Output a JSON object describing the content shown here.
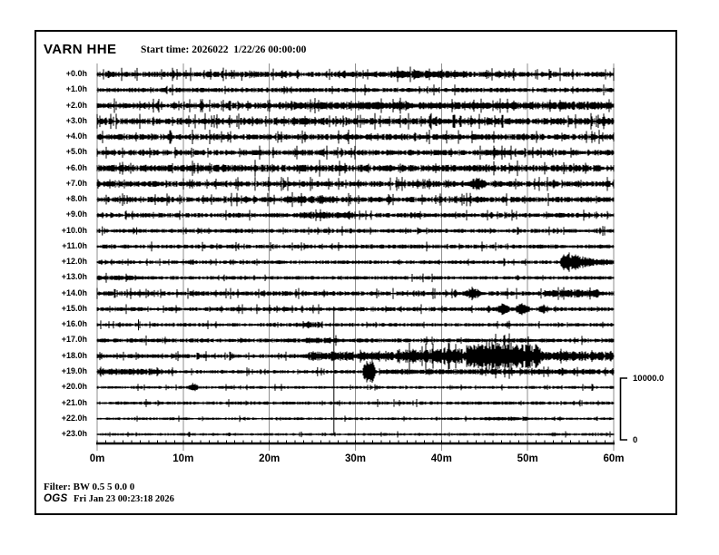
{
  "header": {
    "station": "VARN HHE",
    "start_time": "Start time: 2026022  1/22/26 00:00:00"
  },
  "scale_bar": {
    "top_label": "10000.0",
    "bottom_label": "0"
  },
  "footer": {
    "filter": "Filter: BW 0.5 5 0.0 0",
    "agency": "OGS",
    "generated": "Fri Jan 23 00:23:18 2026"
  },
  "colors": {
    "trace": "#000000",
    "grid": "#8f8f8f",
    "axis": "#000000",
    "background": "#ffffff"
  },
  "chart_data": {
    "type": "line",
    "subtype": "helicorder",
    "title": "VARN HHE",
    "start_time": "2026022 1/22/26 00:00:00",
    "minutes_per_row": 60,
    "row_count": 24,
    "x_tick_labels": [
      "0m",
      "10m",
      "20m",
      "30m",
      "40m",
      "50m",
      "60m"
    ],
    "x_minor_tick_every_minutes": 1,
    "amplitude_scale": {
      "max_counts": 10000.0,
      "min_counts": 0
    },
    "rows": [
      {
        "label": "+0.0h",
        "base": 2.3,
        "spikes": 0.14
      },
      {
        "label": "+1.0h",
        "base": 1.9,
        "spikes": 0.05
      },
      {
        "label": "+2.0h",
        "base": 2.5,
        "spikes": 0.11
      },
      {
        "label": "+3.0h",
        "base": 2.8,
        "spikes": 0.11
      },
      {
        "label": "+4.0h",
        "base": 2.5,
        "spikes": 0.1
      },
      {
        "label": "+5.0h",
        "base": 2.4,
        "spikes": 0.1
      },
      {
        "label": "+6.0h",
        "base": 2.9,
        "spikes": 0.09
      },
      {
        "label": "+7.0h",
        "base": 2.4,
        "spikes": 0.11
      },
      {
        "label": "+8.0h",
        "base": 2.3,
        "spikes": 0.11
      },
      {
        "label": "+9.0h",
        "base": 1.9,
        "spikes": 0.11
      },
      {
        "label": "+10.0h",
        "base": 1.7,
        "spikes": 0.07
      },
      {
        "label": "+11.0h",
        "base": 1.7,
        "spikes": 0.07
      },
      {
        "label": "+12.0h",
        "base": 1.5,
        "spikes": 0.05
      },
      {
        "label": "+13.0h",
        "base": 1.5,
        "spikes": 0.05
      },
      {
        "label": "+14.0h",
        "base": 1.9,
        "spikes": 0.09
      },
      {
        "label": "+15.0h",
        "base": 1.7,
        "spikes": 0.07
      },
      {
        "label": "+16.0h",
        "base": 1.5,
        "spikes": 0.06
      },
      {
        "label": "+17.0h",
        "base": 1.7,
        "spikes": 0.05
      },
      {
        "label": "+18.0h",
        "base": 1.7,
        "spikes": 0.11
      },
      {
        "label": "+19.0h",
        "base": 1.5,
        "spikes": 0.09
      },
      {
        "label": "+20.0h",
        "base": 1.2,
        "spikes": 0.05
      },
      {
        "label": "+21.0h",
        "base": 1.4,
        "spikes": 0.06
      },
      {
        "label": "+22.0h",
        "base": 1.1,
        "spikes": 0.05
      },
      {
        "label": "+23.0h",
        "base": 1.1,
        "spikes": 0.05
      }
    ],
    "events": [
      {
        "row": 0,
        "type": "spike",
        "m": 16.8,
        "up": 2,
        "down": 7
      },
      {
        "row": 0,
        "type": "burst",
        "m0": 34,
        "m1": 43,
        "peak": 1.5
      },
      {
        "row": 2,
        "type": "burst",
        "m0": 21,
        "m1": 60,
        "peak": 1.2
      },
      {
        "row": 6,
        "type": "spike",
        "m": 23.5,
        "up": 3,
        "down": 6
      },
      {
        "row": 6,
        "type": "spike",
        "m": 25.4,
        "up": 3,
        "down": 5
      },
      {
        "row": 7,
        "type": "spindle",
        "m0": 43.2,
        "m1": 45.3,
        "peak": 4.5
      },
      {
        "row": 8,
        "type": "burst",
        "m0": 22,
        "m1": 28,
        "peak": 1.3
      },
      {
        "row": 9,
        "type": "burst",
        "m0": 23.5,
        "m1": 30,
        "peak": 1.6
      },
      {
        "row": 10,
        "type": "spike",
        "m": 0.6,
        "up": 5,
        "down": 5
      },
      {
        "row": 10,
        "type": "spike",
        "m": 4.6,
        "up": 4,
        "down": 4
      },
      {
        "row": 12,
        "type": "quake",
        "m0": 53.8,
        "peak": 13,
        "tau": 2.3
      },
      {
        "row": 13,
        "type": "burst",
        "m0": 0,
        "m1": 5,
        "peak": 1.0
      },
      {
        "row": 14,
        "type": "spindle",
        "m0": 42.8,
        "m1": 44.6,
        "peak": 4
      },
      {
        "row": 14,
        "type": "burst",
        "m0": 52,
        "m1": 58.5,
        "peak": 2.2
      },
      {
        "row": 15,
        "type": "spindle",
        "m0": 46.3,
        "m1": 48.0,
        "peak": 4.5
      },
      {
        "row": 15,
        "type": "spindle",
        "m0": 48.6,
        "m1": 50.3,
        "peak": 5.5
      },
      {
        "row": 15,
        "type": "spindle",
        "m0": 51.2,
        "m1": 52.3,
        "peak": 3.5
      },
      {
        "row": 16,
        "type": "spike",
        "m": 4.8,
        "up": 6,
        "down": 6
      },
      {
        "row": 16,
        "type": "burst",
        "m0": 23,
        "m1": 26,
        "peak": 1.5
      },
      {
        "row": 17,
        "type": "burst",
        "m0": 24,
        "m1": 28,
        "peak": 1.2
      },
      {
        "row": 18,
        "type": "burst",
        "m0": 24.5,
        "m1": 35,
        "peak": 3
      },
      {
        "row": 18,
        "type": "burst",
        "m0": 35,
        "m1": 43,
        "peak": 6
      },
      {
        "row": 18,
        "type": "burst",
        "m0": 43,
        "m1": 51.5,
        "peak": 12
      },
      {
        "row": 18,
        "type": "burst",
        "m0": 51.5,
        "m1": 60,
        "peak": 3.5
      },
      {
        "row": 19,
        "type": "burst",
        "m0": 0.3,
        "m1": 7.5,
        "peak": 2.0
      },
      {
        "row": 19,
        "type": "spike",
        "m": 25.6,
        "up": 5,
        "down": 5
      },
      {
        "row": 19,
        "type": "spike",
        "m": 27.5,
        "up": 72,
        "down": 68
      },
      {
        "row": 19,
        "type": "spindle",
        "m0": 30.8,
        "m1": 32.4,
        "peak": 14
      },
      {
        "row": 19,
        "type": "burst",
        "m0": 33,
        "m1": 60,
        "peak": 1.2
      },
      {
        "row": 20,
        "type": "spindle",
        "m0": 10.5,
        "m1": 11.9,
        "peak": 3.0
      },
      {
        "row": 20,
        "type": "spike",
        "m": 11.1,
        "up": 5,
        "down": 3
      },
      {
        "row": 22,
        "type": "burst",
        "m0": 45,
        "m1": 50,
        "peak": 1.0
      }
    ]
  }
}
